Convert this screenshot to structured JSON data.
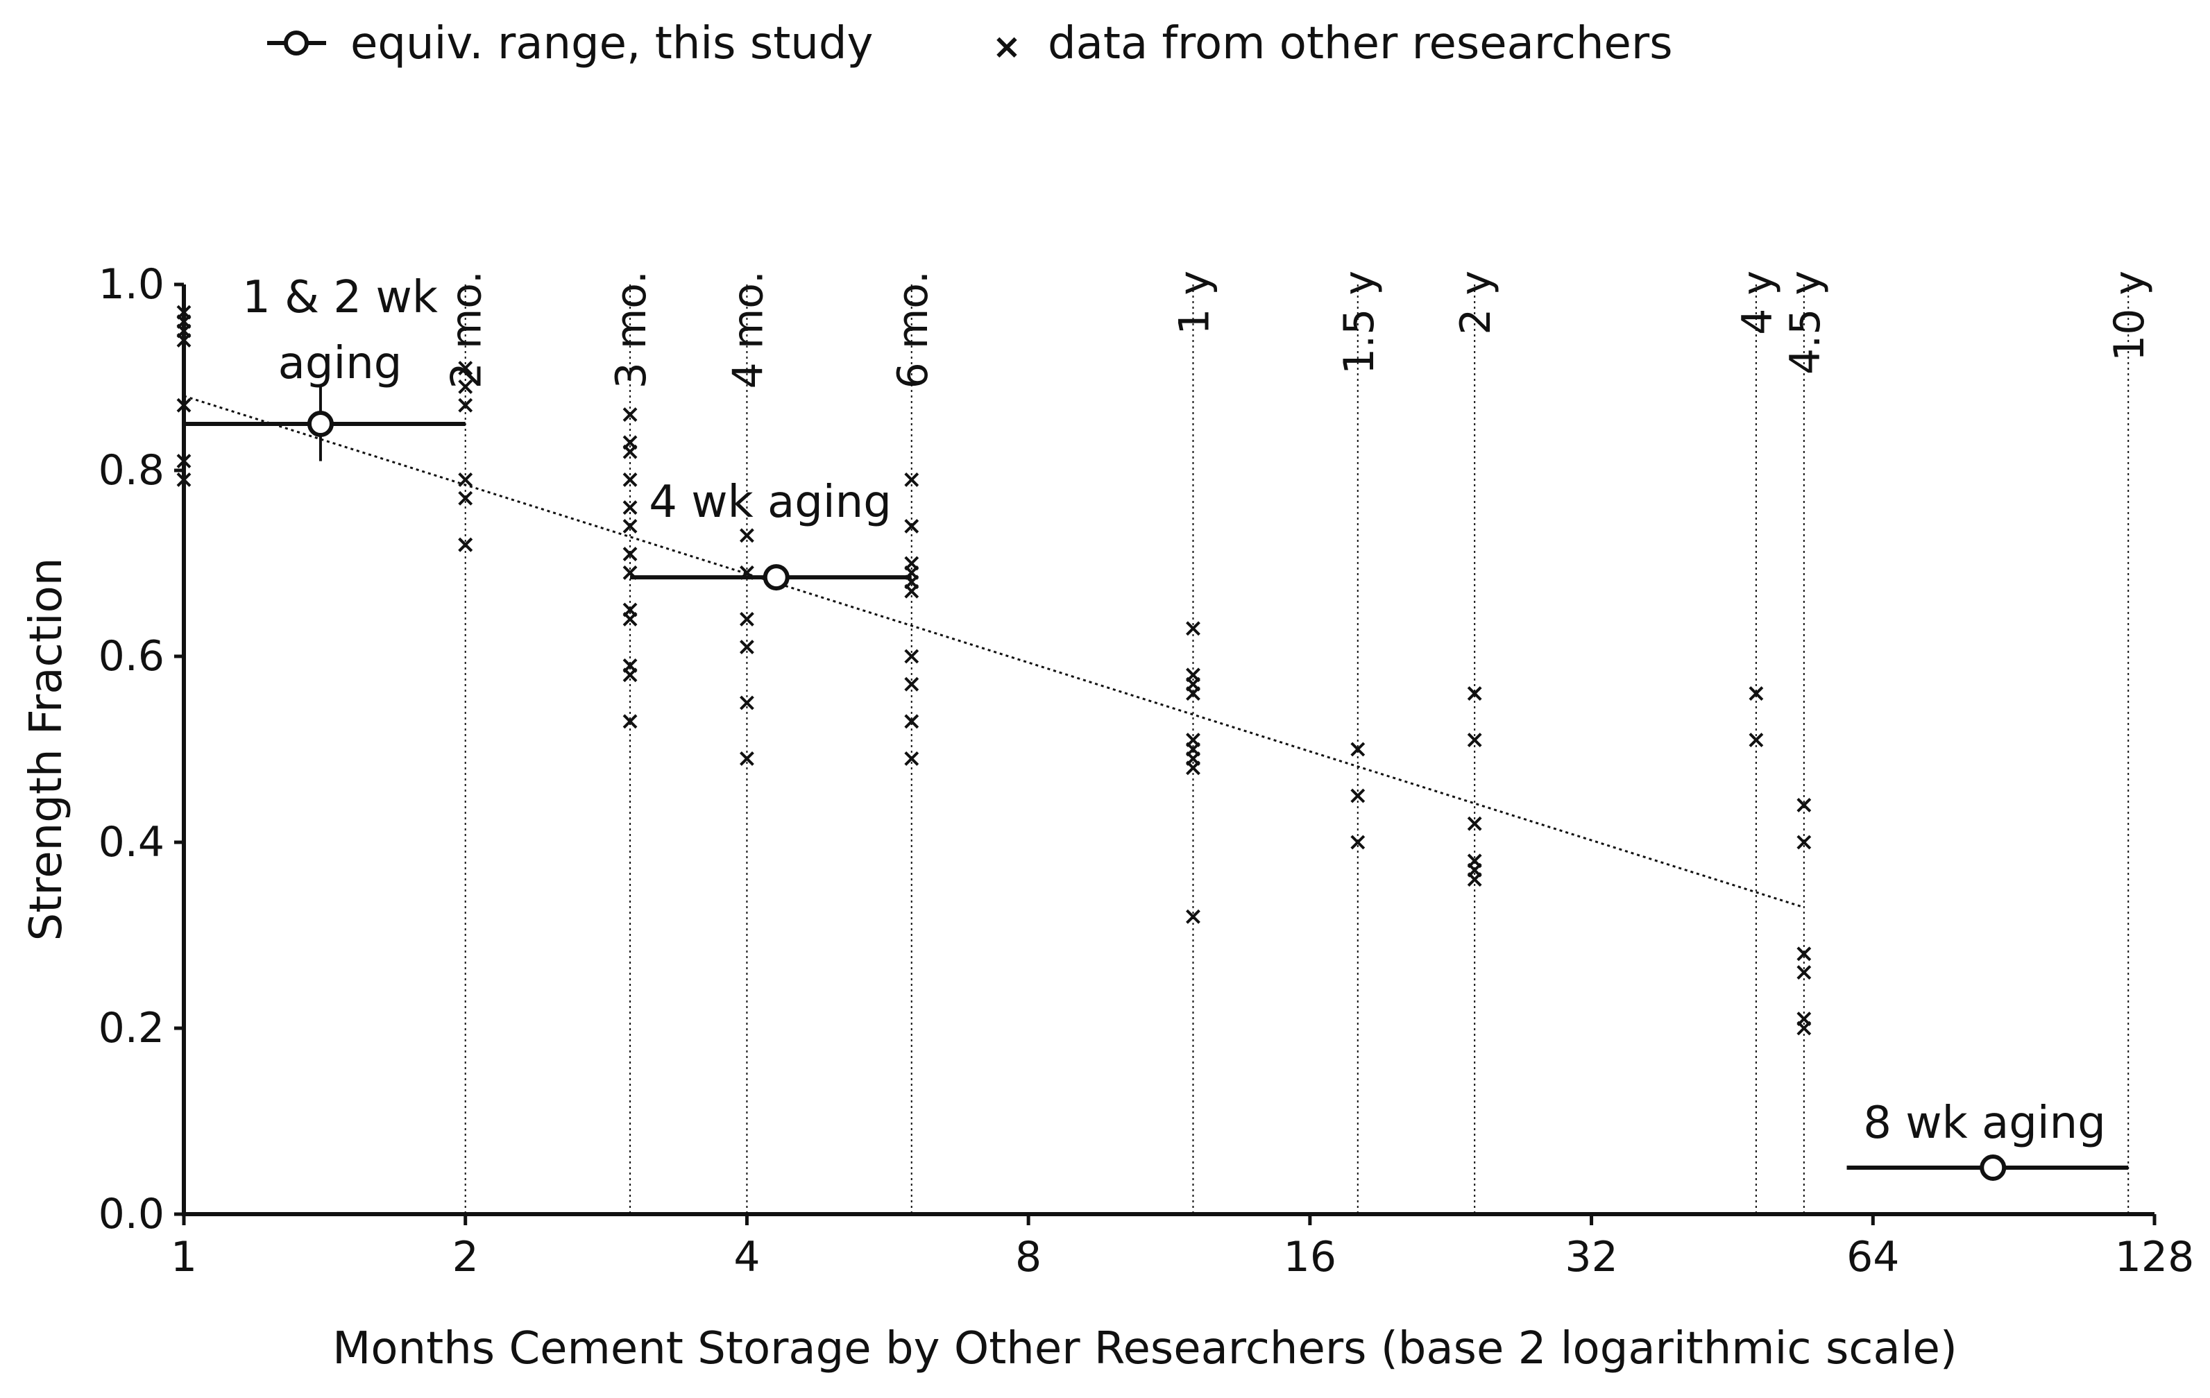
{
  "chart_data": {
    "type": "scatter",
    "title": "",
    "xlabel": "Months Cement Storage by Other Researchers (base 2 logarithmic scale)",
    "ylabel": "Strength Fraction",
    "x_scale": "log2",
    "xlim": [
      1,
      128
    ],
    "ylim": [
      0,
      1
    ],
    "x_ticks": [
      1,
      2,
      4,
      8,
      16,
      32,
      64,
      128
    ],
    "x_tick_labels": [
      "1",
      "2",
      "4",
      "8",
      "16",
      "32",
      "64",
      "128"
    ],
    "y_ticks": [
      0,
      0.2,
      0.4,
      0.6,
      0.8,
      1.0
    ],
    "y_tick_labels": [
      "0.0",
      "0.2",
      "0.4",
      "0.6",
      "0.8",
      "1.0"
    ],
    "grid": false,
    "legend": {
      "placement": "top",
      "entries": [
        {
          "label": "equiv. range, this study",
          "marker": "circle-with-line"
        },
        {
          "label": "data from other researchers",
          "marker": "x"
        }
      ]
    },
    "reference_lines": [
      {
        "label": "2 mo.",
        "x": 2
      },
      {
        "label": "3 mo.",
        "x": 3
      },
      {
        "label": "4 mo.",
        "x": 4
      },
      {
        "label": "6 mo.",
        "x": 6
      },
      {
        "label": "1 y",
        "x": 12
      },
      {
        "label": "1.5 y",
        "x": 18
      },
      {
        "label": "2 y",
        "x": 24
      },
      {
        "label": "4 y",
        "x": 48
      },
      {
        "label": "4.5 y",
        "x": 54
      },
      {
        "label": "10 y",
        "x": 120
      }
    ],
    "series": [
      {
        "name": "data from other researchers",
        "marker": "x",
        "points": [
          {
            "x": 1,
            "y": 0.97
          },
          {
            "x": 1,
            "y": 0.96
          },
          {
            "x": 1,
            "y": 0.95
          },
          {
            "x": 1,
            "y": 0.94
          },
          {
            "x": 1,
            "y": 0.87
          },
          {
            "x": 1,
            "y": 0.81
          },
          {
            "x": 1,
            "y": 0.79
          },
          {
            "x": 2,
            "y": 0.91
          },
          {
            "x": 2,
            "y": 0.89
          },
          {
            "x": 2,
            "y": 0.87
          },
          {
            "x": 2,
            "y": 0.79
          },
          {
            "x": 2,
            "y": 0.77
          },
          {
            "x": 2,
            "y": 0.72
          },
          {
            "x": 2,
            "y": 0.72
          },
          {
            "x": 3,
            "y": 0.86
          },
          {
            "x": 3,
            "y": 0.83
          },
          {
            "x": 3,
            "y": 0.82
          },
          {
            "x": 3,
            "y": 0.79
          },
          {
            "x": 3,
            "y": 0.76
          },
          {
            "x": 3,
            "y": 0.74
          },
          {
            "x": 3,
            "y": 0.71
          },
          {
            "x": 3,
            "y": 0.69
          },
          {
            "x": 3,
            "y": 0.65
          },
          {
            "x": 3,
            "y": 0.64
          },
          {
            "x": 3,
            "y": 0.59
          },
          {
            "x": 3,
            "y": 0.58
          },
          {
            "x": 3,
            "y": 0.53
          },
          {
            "x": 4,
            "y": 0.73
          },
          {
            "x": 4,
            "y": 0.69
          },
          {
            "x": 4,
            "y": 0.64
          },
          {
            "x": 4,
            "y": 0.61
          },
          {
            "x": 4,
            "y": 0.55
          },
          {
            "x": 4,
            "y": 0.49
          },
          {
            "x": 6,
            "y": 0.79
          },
          {
            "x": 6,
            "y": 0.74
          },
          {
            "x": 6,
            "y": 0.7
          },
          {
            "x": 6,
            "y": 0.69
          },
          {
            "x": 6,
            "y": 0.68
          },
          {
            "x": 6,
            "y": 0.67
          },
          {
            "x": 6,
            "y": 0.6
          },
          {
            "x": 6,
            "y": 0.57
          },
          {
            "x": 6,
            "y": 0.53
          },
          {
            "x": 6,
            "y": 0.49
          },
          {
            "x": 12,
            "y": 0.63
          },
          {
            "x": 12,
            "y": 0.58
          },
          {
            "x": 12,
            "y": 0.57
          },
          {
            "x": 12,
            "y": 0.56
          },
          {
            "x": 12,
            "y": 0.51
          },
          {
            "x": 12,
            "y": 0.5
          },
          {
            "x": 12,
            "y": 0.49
          },
          {
            "x": 12,
            "y": 0.48
          },
          {
            "x": 12,
            "y": 0.32
          },
          {
            "x": 18,
            "y": 0.5
          },
          {
            "x": 18,
            "y": 0.45
          },
          {
            "x": 18,
            "y": 0.4
          },
          {
            "x": 24,
            "y": 0.56
          },
          {
            "x": 24,
            "y": 0.51
          },
          {
            "x": 24,
            "y": 0.42
          },
          {
            "x": 24,
            "y": 0.38
          },
          {
            "x": 24,
            "y": 0.37
          },
          {
            "x": 24,
            "y": 0.36
          },
          {
            "x": 48,
            "y": 0.56
          },
          {
            "x": 48,
            "y": 0.51
          },
          {
            "x": 54,
            "y": 0.44
          },
          {
            "x": 54,
            "y": 0.4
          },
          {
            "x": 54,
            "y": 0.28
          },
          {
            "x": 54,
            "y": 0.26
          },
          {
            "x": 54,
            "y": 0.21
          },
          {
            "x": 54,
            "y": 0.2
          }
        ]
      },
      {
        "name": "equiv. range, this study",
        "marker": "circle-with-range",
        "points": [
          {
            "label": "1 & 2 wk aging",
            "x": 1.4,
            "y": 0.85,
            "x_range": [
              1,
              2
            ],
            "y_range": [
              0.81,
              0.89
            ]
          },
          {
            "label": "4 wk aging",
            "x": 4.3,
            "y": 0.685,
            "x_range": [
              3,
              6
            ]
          },
          {
            "label": "8 wk aging",
            "x": 86,
            "y": 0.05,
            "x_range": [
              60,
              120
            ]
          }
        ]
      }
    ],
    "trendline": {
      "style": "dotted",
      "from": {
        "x": 1,
        "y": 0.88
      },
      "to": {
        "x": 54,
        "y": 0.33
      }
    }
  }
}
